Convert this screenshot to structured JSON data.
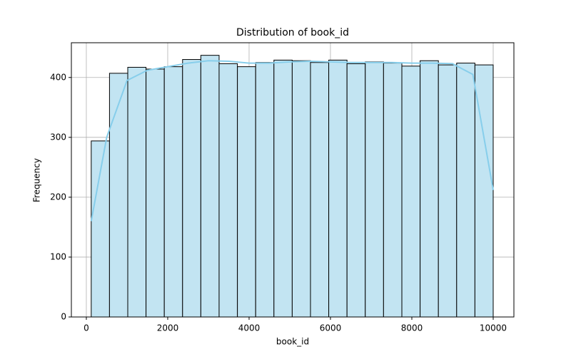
{
  "chart_data": {
    "type": "histogram",
    "title": "Distribution of book_id",
    "xlabel": "book_id",
    "ylabel": "Frequency",
    "bins": [
      120,
      569,
      1018,
      1467,
      1916,
      2365,
      2814,
      3263,
      3713,
      4162,
      4611,
      5060,
      5509,
      5958,
      6407,
      6856,
      7305,
      7755,
      8204,
      8653,
      9102,
      9551,
      10000
    ],
    "values": [
      294,
      407,
      417,
      414,
      418,
      430,
      437,
      423,
      418,
      425,
      429,
      428,
      425,
      429,
      423,
      426,
      424,
      419,
      428,
      421,
      424,
      421
    ],
    "color": "#c2e4f2",
    "edgecolor": "#000000",
    "kde": {
      "x": [
        120,
        500,
        1000,
        1500,
        2000,
        2500,
        3000,
        3500,
        4000,
        4500,
        5000,
        5500,
        6000,
        6500,
        7000,
        7500,
        8000,
        8500,
        9000,
        9500,
        10000
      ],
      "values": [
        160,
        300,
        395,
        412,
        418,
        424,
        428,
        427,
        424,
        424,
        426,
        427,
        426,
        425,
        425,
        425,
        424,
        424,
        423,
        405,
        212
      ],
      "color": "#87ceeb"
    },
    "xlim": [
      -368,
      10509
    ],
    "ylim": [
      0,
      458
    ],
    "xticks": [
      0,
      2000,
      4000,
      6000,
      8000,
      10000
    ],
    "yticks": [
      0,
      100,
      200,
      300,
      400
    ],
    "grid": true
  }
}
